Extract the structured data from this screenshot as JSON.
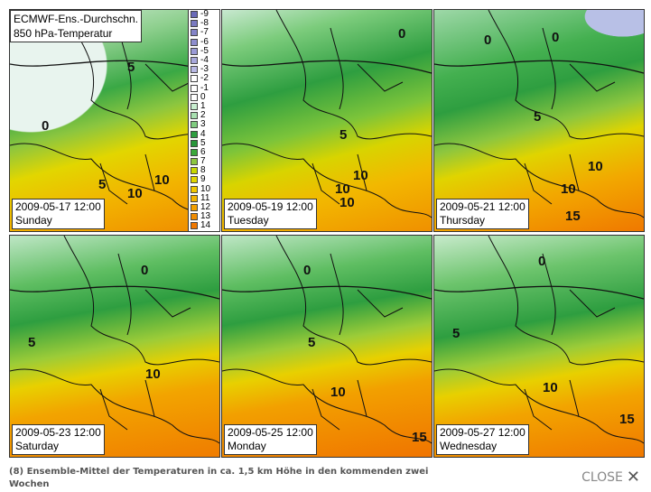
{
  "panel_title": [
    "ECMWF-Ens.-Durchschn.",
    "850 hPa-Temperatur"
  ],
  "legend": {
    "values": [
      "-9",
      "-8",
      "-7",
      "-6",
      "-5",
      "-4",
      "-3",
      "-2",
      "-1",
      "0",
      "1",
      "2",
      "3",
      "4",
      "5",
      "6",
      "7",
      "8",
      "9",
      "10",
      "11",
      "12",
      "13",
      "14"
    ],
    "colors": [
      "#6a6ab8",
      "#7a7ac0",
      "#8484c8",
      "#8e8ece",
      "#9a9ad6",
      "#a8a8dc",
      "#b8b8e4",
      "#ffffff",
      "#ffffff",
      "#ffffff",
      "#c8eed0",
      "#a8e0b0",
      "#80cc80",
      "#2e9e40",
      "#28963a",
      "#3aa83a",
      "#8cc63f",
      "#c8d800",
      "#e2d600",
      "#f2c800",
      "#f2b400",
      "#f2a000",
      "#f08c00",
      "#f07800"
    ]
  },
  "panels": [
    {
      "date": "2009-05-17 12:00",
      "day": "Sunday",
      "labels": [
        "5",
        "0",
        "5",
        "10",
        "10"
      ]
    },
    {
      "date": "2009-05-19 12:00",
      "day": "Tuesday",
      "labels": [
        "0",
        "5",
        "10",
        "10",
        "10"
      ]
    },
    {
      "date": "2009-05-21 12:00",
      "day": "Thursday",
      "labels": [
        "0",
        "0",
        "5",
        "10",
        "10",
        "15"
      ]
    },
    {
      "date": "2009-05-23 12:00",
      "day": "Saturday",
      "labels": [
        "0",
        "5",
        "10"
      ]
    },
    {
      "date": "2009-05-25 12:00",
      "day": "Monday",
      "labels": [
        "0",
        "5",
        "10",
        "15"
      ]
    },
    {
      "date": "2009-05-27 12:00",
      "day": "Wednesday",
      "labels": [
        "0",
        "5",
        "10",
        "15"
      ]
    }
  ],
  "caption": "(8) Ensemble-Mittel der Temperaturen in ca. 1,5 km Höhe in den kommenden zwei Wochen",
  "close_label": "CLOSE",
  "close_icon": "✕"
}
